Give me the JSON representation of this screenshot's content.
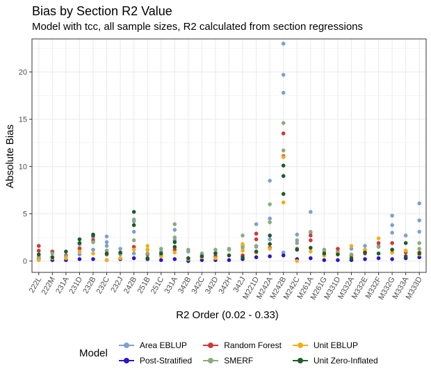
{
  "chart_data": {
    "type": "scatter",
    "title": "Bias by Section R2 Value",
    "subtitle": "Model with tcc, all sample sizes, R2 calculated from section regressions",
    "xlabel": "R2 Order (0.02 - 0.33)",
    "ylabel": "Absolute Bias",
    "ylim": [
      -1.2,
      23.5
    ],
    "yticks": [
      0,
      5,
      10,
      15,
      20
    ],
    "grid": true,
    "legend_title": "Model",
    "legend_position": "bottom",
    "categories": [
      "222L",
      "222M",
      "231A",
      "231D",
      "232B",
      "232C",
      "232J",
      "242B",
      "251B",
      "251C",
      "331A",
      "342B",
      "342C",
      "342D",
      "342H",
      "342J",
      "M221D",
      "M242A",
      "M242B",
      "M242C",
      "M261A",
      "M261G",
      "M331D",
      "M332A",
      "M332E",
      "M332F",
      "M332G",
      "M333A",
      "M333D"
    ],
    "series": [
      {
        "name": "Area EBLUP",
        "color": "#7f9fcf",
        "points": [
          [
            0,
            0.5
          ],
          [
            0,
            0.2
          ],
          [
            1,
            1.0
          ],
          [
            1,
            0.4
          ],
          [
            2,
            0.6
          ],
          [
            2,
            0.2
          ],
          [
            3,
            1.4
          ],
          [
            3,
            0.7
          ],
          [
            4,
            2.5
          ],
          [
            4,
            1.2
          ],
          [
            5,
            2.6
          ],
          [
            5,
            2.0
          ],
          [
            5,
            1.6
          ],
          [
            6,
            1.3
          ],
          [
            6,
            0.7
          ],
          [
            7,
            4.2
          ],
          [
            7,
            3.1
          ],
          [
            7,
            0.8
          ],
          [
            8,
            1.2
          ],
          [
            9,
            1.0
          ],
          [
            10,
            3.3
          ],
          [
            10,
            2.2
          ],
          [
            11,
            1.0
          ],
          [
            12,
            0.8
          ],
          [
            13,
            0.9
          ],
          [
            14,
            1.3
          ],
          [
            15,
            1.6
          ],
          [
            16,
            3.9
          ],
          [
            16,
            1.5
          ],
          [
            17,
            8.5
          ],
          [
            17,
            4.5
          ],
          [
            17,
            2.3
          ],
          [
            18,
            23.0
          ],
          [
            18,
            19.7
          ],
          [
            18,
            17.8
          ],
          [
            18,
            11.0
          ],
          [
            18,
            0.9
          ],
          [
            19,
            2.8
          ],
          [
            19,
            1.9
          ],
          [
            20,
            5.2
          ],
          [
            20,
            3.0
          ],
          [
            21,
            1.0
          ],
          [
            22,
            1.0
          ],
          [
            23,
            1.3
          ],
          [
            24,
            1.6
          ],
          [
            25,
            1.6
          ],
          [
            26,
            4.8
          ],
          [
            26,
            3.8
          ],
          [
            26,
            3.0
          ],
          [
            27,
            2.7
          ],
          [
            28,
            6.1
          ],
          [
            28,
            4.3
          ],
          [
            28,
            3.1
          ]
        ]
      },
      {
        "name": "Post-Stratified",
        "color": "#2a17c9",
        "points": [
          [
            0,
            0.2
          ],
          [
            1,
            0.1
          ],
          [
            2,
            0.1
          ],
          [
            3,
            0.2
          ],
          [
            4,
            0.2
          ],
          [
            5,
            0.1
          ],
          [
            6,
            0.2
          ],
          [
            7,
            0.3
          ],
          [
            8,
            0.2
          ],
          [
            9,
            0.1
          ],
          [
            10,
            0.2
          ],
          [
            11,
            0.0
          ],
          [
            12,
            0.1
          ],
          [
            13,
            0.1
          ],
          [
            14,
            0.1
          ],
          [
            15,
            0.2
          ],
          [
            16,
            0.4
          ],
          [
            17,
            0.5
          ],
          [
            18,
            0.6
          ],
          [
            19,
            0.2
          ],
          [
            20,
            0.3
          ],
          [
            21,
            0.1
          ],
          [
            22,
            0.1
          ],
          [
            23,
            0.1
          ],
          [
            24,
            0.2
          ],
          [
            25,
            0.3
          ],
          [
            26,
            0.2
          ],
          [
            27,
            0.3
          ],
          [
            28,
            0.4
          ]
        ]
      },
      {
        "name": "Random Forest",
        "color": "#d2363b",
        "points": [
          [
            0,
            1.6
          ],
          [
            0,
            1.1
          ],
          [
            1,
            1.0
          ],
          [
            2,
            0.6
          ],
          [
            3,
            1.3
          ],
          [
            4,
            2.2
          ],
          [
            5,
            0.7
          ],
          [
            6,
            0.8
          ],
          [
            7,
            1.5
          ],
          [
            8,
            0.7
          ],
          [
            9,
            0.6
          ],
          [
            10,
            1.2
          ],
          [
            11,
            0.3
          ],
          [
            12,
            0.4
          ],
          [
            13,
            0.5
          ],
          [
            14,
            0.6
          ],
          [
            15,
            0.6
          ],
          [
            16,
            2.9
          ],
          [
            16,
            2.3
          ],
          [
            17,
            1.4
          ],
          [
            18,
            13.5
          ],
          [
            18,
            11.1
          ],
          [
            19,
            1.3
          ],
          [
            20,
            2.7
          ],
          [
            20,
            2.2
          ],
          [
            21,
            0.6
          ],
          [
            22,
            1.3
          ],
          [
            23,
            0.6
          ],
          [
            24,
            0.8
          ],
          [
            25,
            1.9
          ],
          [
            26,
            1.9
          ],
          [
            27,
            0.9
          ],
          [
            28,
            0.9
          ]
        ]
      },
      {
        "name": "SMERF",
        "color": "#8aac7a",
        "points": [
          [
            0,
            0.4
          ],
          [
            1,
            0.8
          ],
          [
            2,
            0.5
          ],
          [
            3,
            1.8
          ],
          [
            4,
            2.0
          ],
          [
            5,
            1.1
          ],
          [
            6,
            0.8
          ],
          [
            7,
            4.4
          ],
          [
            7,
            2.2
          ],
          [
            8,
            0.8
          ],
          [
            9,
            1.3
          ],
          [
            10,
            3.9
          ],
          [
            10,
            2.5
          ],
          [
            11,
            1.2
          ],
          [
            12,
            0.7
          ],
          [
            13,
            1.2
          ],
          [
            14,
            1.2
          ],
          [
            15,
            2.7
          ],
          [
            15,
            1.4
          ],
          [
            16,
            1.6
          ],
          [
            17,
            6.0
          ],
          [
            17,
            4.1
          ],
          [
            18,
            14.6
          ],
          [
            18,
            11.7
          ],
          [
            19,
            2.2
          ],
          [
            20,
            3.1
          ],
          [
            21,
            1.2
          ],
          [
            22,
            0.9
          ],
          [
            23,
            0.7
          ],
          [
            24,
            1.0
          ],
          [
            25,
            1.5
          ],
          [
            26,
            1.2
          ],
          [
            27,
            1.1
          ],
          [
            28,
            1.9
          ],
          [
            28,
            1.3
          ]
        ]
      },
      {
        "name": "Unit EBLUP",
        "color": "#f5ad14",
        "points": [
          [
            0,
            0.1
          ],
          [
            1,
            0.3
          ],
          [
            2,
            0.3
          ],
          [
            3,
            1.0
          ],
          [
            4,
            0.8
          ],
          [
            5,
            0.1
          ],
          [
            6,
            0.3
          ],
          [
            7,
            1.2
          ],
          [
            8,
            1.6
          ],
          [
            8,
            1.2
          ],
          [
            9,
            0.5
          ],
          [
            10,
            0.9
          ],
          [
            11,
            0.2
          ],
          [
            12,
            0.4
          ],
          [
            13,
            0.3
          ],
          [
            14,
            0.6
          ],
          [
            15,
            1.8
          ],
          [
            15,
            1.1
          ],
          [
            16,
            0.9
          ],
          [
            17,
            1.3
          ],
          [
            18,
            11.0
          ],
          [
            18,
            6.2
          ],
          [
            19,
            0.0
          ],
          [
            20,
            1.0
          ],
          [
            21,
            0.6
          ],
          [
            22,
            0.8
          ],
          [
            23,
            1.6
          ],
          [
            24,
            1.2
          ],
          [
            25,
            2.4
          ],
          [
            26,
            0.9
          ],
          [
            27,
            1.1
          ],
          [
            28,
            0.7
          ]
        ]
      },
      {
        "name": "Unit Zero-Inflated",
        "color": "#1e5c28",
        "points": [
          [
            0,
            0.7
          ],
          [
            1,
            0.4
          ],
          [
            2,
            1.0
          ],
          [
            3,
            2.3
          ],
          [
            3,
            1.9
          ],
          [
            4,
            2.8
          ],
          [
            4,
            2.7
          ],
          [
            5,
            0.8
          ],
          [
            6,
            0.9
          ],
          [
            7,
            5.2
          ],
          [
            7,
            3.8
          ],
          [
            8,
            0.3
          ],
          [
            9,
            0.8
          ],
          [
            10,
            2.0
          ],
          [
            10,
            1.5
          ],
          [
            11,
            0.3
          ],
          [
            12,
            0.5
          ],
          [
            13,
            0.8
          ],
          [
            14,
            0.6
          ],
          [
            15,
            0.4
          ],
          [
            16,
            1.0
          ],
          [
            17,
            2.7
          ],
          [
            17,
            1.8
          ],
          [
            18,
            10.1
          ],
          [
            18,
            9.0
          ],
          [
            18,
            7.1
          ],
          [
            19,
            1.2
          ],
          [
            20,
            1.4
          ],
          [
            21,
            0.8
          ],
          [
            22,
            0.7
          ],
          [
            23,
            0.3
          ],
          [
            24,
            0.9
          ],
          [
            25,
            0.8
          ],
          [
            26,
            1.2
          ],
          [
            27,
            1.9
          ],
          [
            27,
            0.5
          ],
          [
            28,
            0.8
          ]
        ]
      }
    ]
  }
}
